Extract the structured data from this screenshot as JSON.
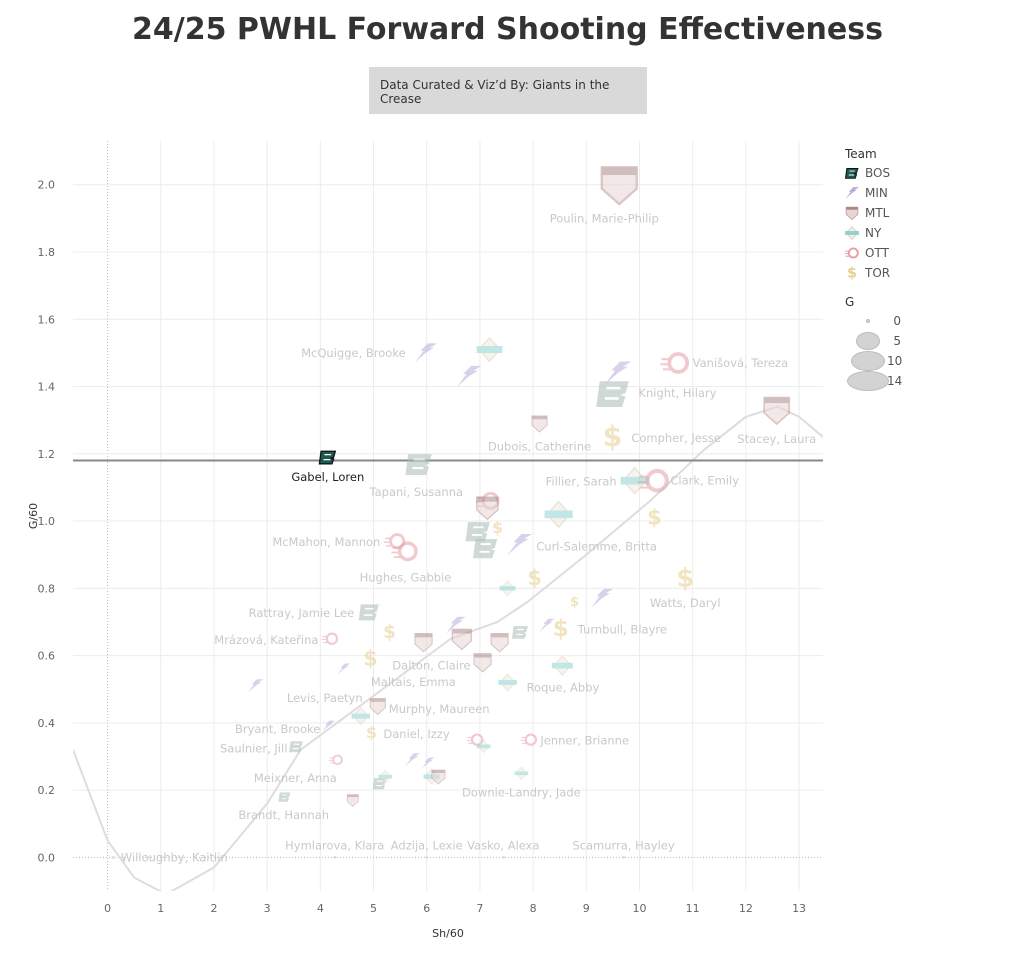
{
  "title": "24/25 PWHL Forward Shooting Effectiveness",
  "credit": "Data Curated & Viz’d By: Giants in the Crease",
  "legend": {
    "team_title": "Team",
    "teams": [
      {
        "code": "BOS",
        "color": "#1c5a50"
      },
      {
        "code": "MIN",
        "color": "#5b3a9a"
      },
      {
        "code": "MTL",
        "color": "#862633"
      },
      {
        "code": "NY",
        "color": "#3fb5b5"
      },
      {
        "code": "OTT",
        "color": "#c8102e"
      },
      {
        "code": "TOR",
        "color": "#d9a400"
      }
    ],
    "size_title": "G",
    "sizes": [
      "0",
      "5",
      "10",
      "14"
    ]
  },
  "chart_data": {
    "type": "scatter",
    "xlabel": "Sh/60",
    "ylabel": "G/60",
    "xlim": [
      -0.65,
      13.45
    ],
    "ylim": [
      -0.1,
      2.13
    ],
    "xticks": [
      "0",
      "1",
      "2",
      "3",
      "4",
      "5",
      "6",
      "7",
      "8",
      "9",
      "10",
      "11",
      "12",
      "13"
    ],
    "yticks": [
      "0.0",
      "0.2",
      "0.4",
      "0.6",
      "0.8",
      "1.0",
      "1.2",
      "1.4",
      "1.6",
      "1.8",
      "2.0"
    ],
    "grid": true,
    "reference_line_y": 1.18,
    "highlighted": "Gabel, Loren",
    "trend_curve": [
      [
        -0.65,
        0.32
      ],
      [
        0,
        0.05
      ],
      [
        0.5,
        -0.06
      ],
      [
        1.1,
        -0.11
      ],
      [
        2.0,
        -0.03
      ],
      [
        3.0,
        0.16
      ],
      [
        3.63,
        0.32
      ],
      [
        5.0,
        0.48
      ],
      [
        6.45,
        0.65
      ],
      [
        7.33,
        0.7
      ],
      [
        7.9,
        0.76
      ],
      [
        9.0,
        0.9
      ],
      [
        10.2,
        1.06
      ],
      [
        11.2,
        1.21
      ],
      [
        12.0,
        1.31
      ],
      [
        12.6,
        1.34
      ],
      [
        13.0,
        1.31
      ],
      [
        13.45,
        1.25
      ]
    ],
    "points": [
      {
        "team": "MTL",
        "x": 9.62,
        "y": 2.0,
        "g": 14,
        "label": "Poulin, Marie-Philip"
      },
      {
        "team": "MIN",
        "x": 5.98,
        "y": 1.5,
        "g": 6,
        "label": "McQuigge, Brooke"
      },
      {
        "team": "MIN",
        "x": 6.79,
        "y": 1.43,
        "g": 7
      },
      {
        "team": "NY",
        "x": 7.18,
        "y": 1.51,
        "g": 7
      },
      {
        "team": "MIN",
        "x": 9.59,
        "y": 1.44,
        "g": 8
      },
      {
        "team": "BOS",
        "x": 9.51,
        "y": 1.38,
        "g": 12,
        "label": "Knight, Hilary"
      },
      {
        "team": "OTT",
        "x": 10.68,
        "y": 1.47,
        "g": 8,
        "label": "Vanišová, Tereza"
      },
      {
        "team": "MTL",
        "x": 12.58,
        "y": 1.33,
        "g": 9,
        "label": "Stacey, Laura"
      },
      {
        "team": "MTL",
        "x": 8.12,
        "y": 1.29,
        "g": 4,
        "label": "Dubois, Catherine"
      },
      {
        "team": "TOR",
        "x": 9.49,
        "y": 1.25,
        "g": 8,
        "label": "Compher, Jesse"
      },
      {
        "team": "BOS",
        "x": 4.14,
        "y": 1.19,
        "g": 4,
        "label": "Gabel, Loren"
      },
      {
        "team": "BOS",
        "x": 5.86,
        "y": 1.17,
        "g": 9,
        "label": "Tapani, Susanna"
      },
      {
        "team": "NY",
        "x": 9.91,
        "y": 1.12,
        "g": 8,
        "label": "Fillier, Sarah"
      },
      {
        "team": "OTT",
        "x": 10.28,
        "y": 1.12,
        "g": 9,
        "label": "Clark, Emily"
      },
      {
        "team": "TOR",
        "x": 10.28,
        "y": 1.01,
        "g": 5
      },
      {
        "team": "NY",
        "x": 8.48,
        "y": 1.02,
        "g": 8
      },
      {
        "team": "OTT",
        "x": 7.16,
        "y": 1.06,
        "g": 6
      },
      {
        "team": "MTL",
        "x": 7.14,
        "y": 1.04,
        "g": 7
      },
      {
        "team": "BOS",
        "x": 6.97,
        "y": 0.97,
        "g": 8
      },
      {
        "team": "BOS",
        "x": 7.11,
        "y": 0.92,
        "g": 8
      },
      {
        "team": "TOR",
        "x": 7.33,
        "y": 0.98,
        "g": 3
      },
      {
        "team": "MIN",
        "x": 7.74,
        "y": 0.93,
        "g": 7,
        "label": "Curl-Salemme, Britta"
      },
      {
        "team": "OTT",
        "x": 5.41,
        "y": 0.94,
        "g": 5,
        "label": "McMahon, Mannon"
      },
      {
        "team": "OTT",
        "x": 5.6,
        "y": 0.91,
        "g": 7,
        "label": "Hughes, Gabbie"
      },
      {
        "team": "NY",
        "x": 7.52,
        "y": 0.8,
        "g": 3
      },
      {
        "team": "TOR",
        "x": 8.03,
        "y": 0.83,
        "g": 5
      },
      {
        "team": "TOR",
        "x": 8.78,
        "y": 0.76,
        "g": 2
      },
      {
        "team": "MIN",
        "x": 9.29,
        "y": 0.77,
        "g": 6
      },
      {
        "team": "TOR",
        "x": 10.86,
        "y": 0.83,
        "g": 7,
        "label": "Watts, Daryl"
      },
      {
        "team": "BOS",
        "x": 4.92,
        "y": 0.73,
        "g": 6,
        "label": "Rattray, Jamie Lee"
      },
      {
        "team": "OTT",
        "x": 4.19,
        "y": 0.65,
        "g": 3,
        "label": "Mrázová, Kateřina"
      },
      {
        "team": "TOR",
        "x": 5.3,
        "y": 0.67,
        "g": 4
      },
      {
        "team": "MIN",
        "x": 6.54,
        "y": 0.69,
        "g": 5
      },
      {
        "team": "MTL",
        "x": 5.94,
        "y": 0.64,
        "g": 5
      },
      {
        "team": "MTL",
        "x": 6.66,
        "y": 0.65,
        "g": 6
      },
      {
        "team": "MTL",
        "x": 7.37,
        "y": 0.64,
        "g": 5
      },
      {
        "team": "BOS",
        "x": 7.76,
        "y": 0.67,
        "g": 4
      },
      {
        "team": "MIN",
        "x": 8.26,
        "y": 0.69,
        "g": 3
      },
      {
        "team": "TOR",
        "x": 8.52,
        "y": 0.68,
        "g": 6,
        "label": "Turnbull, Blayre"
      },
      {
        "team": "MTL",
        "x": 7.05,
        "y": 0.58,
        "g": 5,
        "label": "Dalton, Claire"
      },
      {
        "team": "TOR",
        "x": 4.94,
        "y": 0.59,
        "g": 5,
        "label": "Maltais, Emma"
      },
      {
        "team": "NY",
        "x": 8.55,
        "y": 0.57,
        "g": 5
      },
      {
        "team": "MIN",
        "x": 4.44,
        "y": 0.56,
        "g": 2
      },
      {
        "team": "MIN",
        "x": 2.78,
        "y": 0.51,
        "g": 3
      },
      {
        "team": "NY",
        "x": 7.52,
        "y": 0.52,
        "g": 4,
        "label": "Roque, Abby"
      },
      {
        "team": "MTL",
        "x": 5.08,
        "y": 0.45,
        "g": 4,
        "label": "Murphy, Maureen"
      },
      {
        "team": "NY",
        "x": 4.76,
        "y": 0.42,
        "g": 4,
        "label": "Levis, Paetyn"
      },
      {
        "team": "MIN",
        "x": 4.15,
        "y": 0.39,
        "g": 2,
        "label": "Bryant, Brooke"
      },
      {
        "team": "TOR",
        "x": 4.96,
        "y": 0.37,
        "g": 3,
        "label": "Daniel, Izzy"
      },
      {
        "team": "BOS",
        "x": 3.55,
        "y": 0.33,
        "g": 3,
        "label": "Saulnier, Jill"
      },
      {
        "team": "OTT",
        "x": 6.92,
        "y": 0.35,
        "g": 3
      },
      {
        "team": "NY",
        "x": 7.07,
        "y": 0.33,
        "g": 2
      },
      {
        "team": "OTT",
        "x": 7.93,
        "y": 0.35,
        "g": 3,
        "label": "Jenner, Brianne"
      },
      {
        "team": "OTT",
        "x": 4.3,
        "y": 0.29,
        "g": 2,
        "label": "Meixner, Anna"
      },
      {
        "team": "MIN",
        "x": 5.73,
        "y": 0.29,
        "g": 3
      },
      {
        "team": "MIN",
        "x": 6.02,
        "y": 0.28,
        "g": 2
      },
      {
        "team": "BOS",
        "x": 5.12,
        "y": 0.22,
        "g": 3
      },
      {
        "team": "NY",
        "x": 5.22,
        "y": 0.24,
        "g": 2
      },
      {
        "team": "NY",
        "x": 6.09,
        "y": 0.24,
        "g": 3
      },
      {
        "team": "MTL",
        "x": 6.22,
        "y": 0.24,
        "g": 3
      },
      {
        "team": "NY",
        "x": 7.78,
        "y": 0.25,
        "g": 2,
        "label": "Downie-Landry, Jade"
      },
      {
        "team": "BOS",
        "x": 3.33,
        "y": 0.18,
        "g": 2,
        "label": "Brandt, Hannah"
      },
      {
        "team": "MTL",
        "x": 4.61,
        "y": 0.17,
        "g": 2
      },
      {
        "team": "BOS",
        "x": 4.27,
        "y": 0.0,
        "g": 0,
        "label": "Hymlarova, Klara"
      },
      {
        "team": "MIN",
        "x": 6.0,
        "y": 0.0,
        "g": 0,
        "label": "Adzija, Lexie"
      },
      {
        "team": "NY",
        "x": 7.44,
        "y": 0.0,
        "g": 0,
        "label": "Vasko, Alexa"
      },
      {
        "team": "TOR",
        "x": 9.7,
        "y": 0.0,
        "g": 0,
        "label": "Scamurra, Hayley"
      },
      {
        "team": "OTT",
        "x": 0.1,
        "y": 0.0,
        "g": 0,
        "label": "Willoughby, Kaitlin"
      }
    ]
  }
}
